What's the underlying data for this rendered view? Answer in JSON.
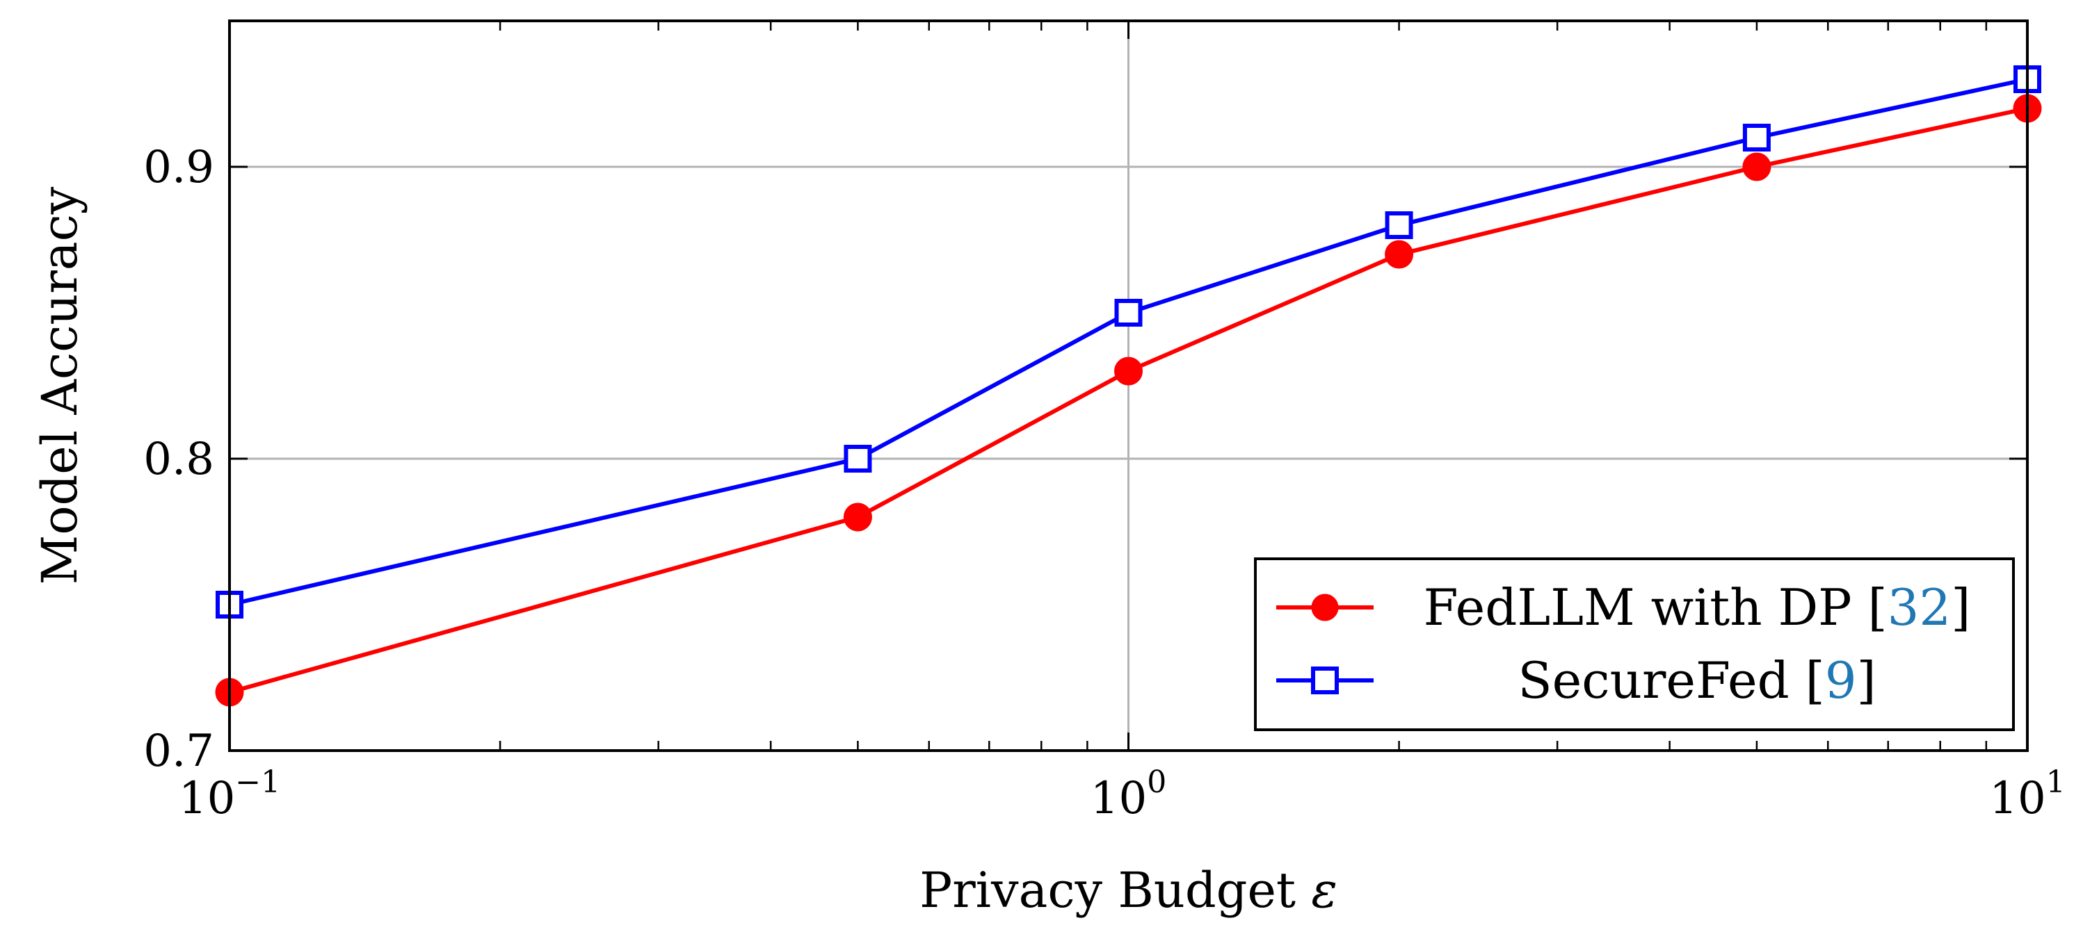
{
  "chart_data": {
    "type": "line",
    "title": "",
    "xlabel": "Privacy Budget",
    "xlabel_symbol": "ε",
    "ylabel": "Model Accuracy",
    "x_scale": "log",
    "xlim": [
      0.1,
      10
    ],
    "ylim": [
      0.7,
      0.95
    ],
    "grid": true,
    "grid_major_x": [
      1
    ],
    "grid_major_y": [
      0.8,
      0.9
    ],
    "x_ticks": [
      {
        "value": 0.1,
        "base": "10",
        "exp": "−1"
      },
      {
        "value": 1,
        "base": "10",
        "exp": "0"
      },
      {
        "value": 10,
        "base": "10",
        "exp": "1"
      }
    ],
    "x_minor_ticks": [
      0.2,
      0.3,
      0.4,
      0.5,
      0.6,
      0.7,
      0.8,
      0.9,
      2,
      3,
      4,
      5,
      6,
      7,
      8,
      9
    ],
    "y_ticks": [
      {
        "value": 0.7,
        "label": "0.7"
      },
      {
        "value": 0.8,
        "label": "0.8"
      },
      {
        "value": 0.9,
        "label": "0.9"
      }
    ],
    "legend_position": "bottom-right",
    "series": [
      {
        "name": "FedLLM with DP",
        "ref": "32",
        "color": "#ff0000",
        "marker": "circle",
        "x": [
          0.1,
          0.5,
          1,
          2,
          5,
          10
        ],
        "y": [
          0.72,
          0.78,
          0.83,
          0.87,
          0.9,
          0.92
        ]
      },
      {
        "name": "SecureFed",
        "ref": "9",
        "color": "#0000ff",
        "marker": "square",
        "x": [
          0.1,
          0.5,
          1,
          2,
          5,
          10
        ],
        "y": [
          0.75,
          0.8,
          0.85,
          0.88,
          0.91,
          0.93
        ]
      }
    ]
  }
}
